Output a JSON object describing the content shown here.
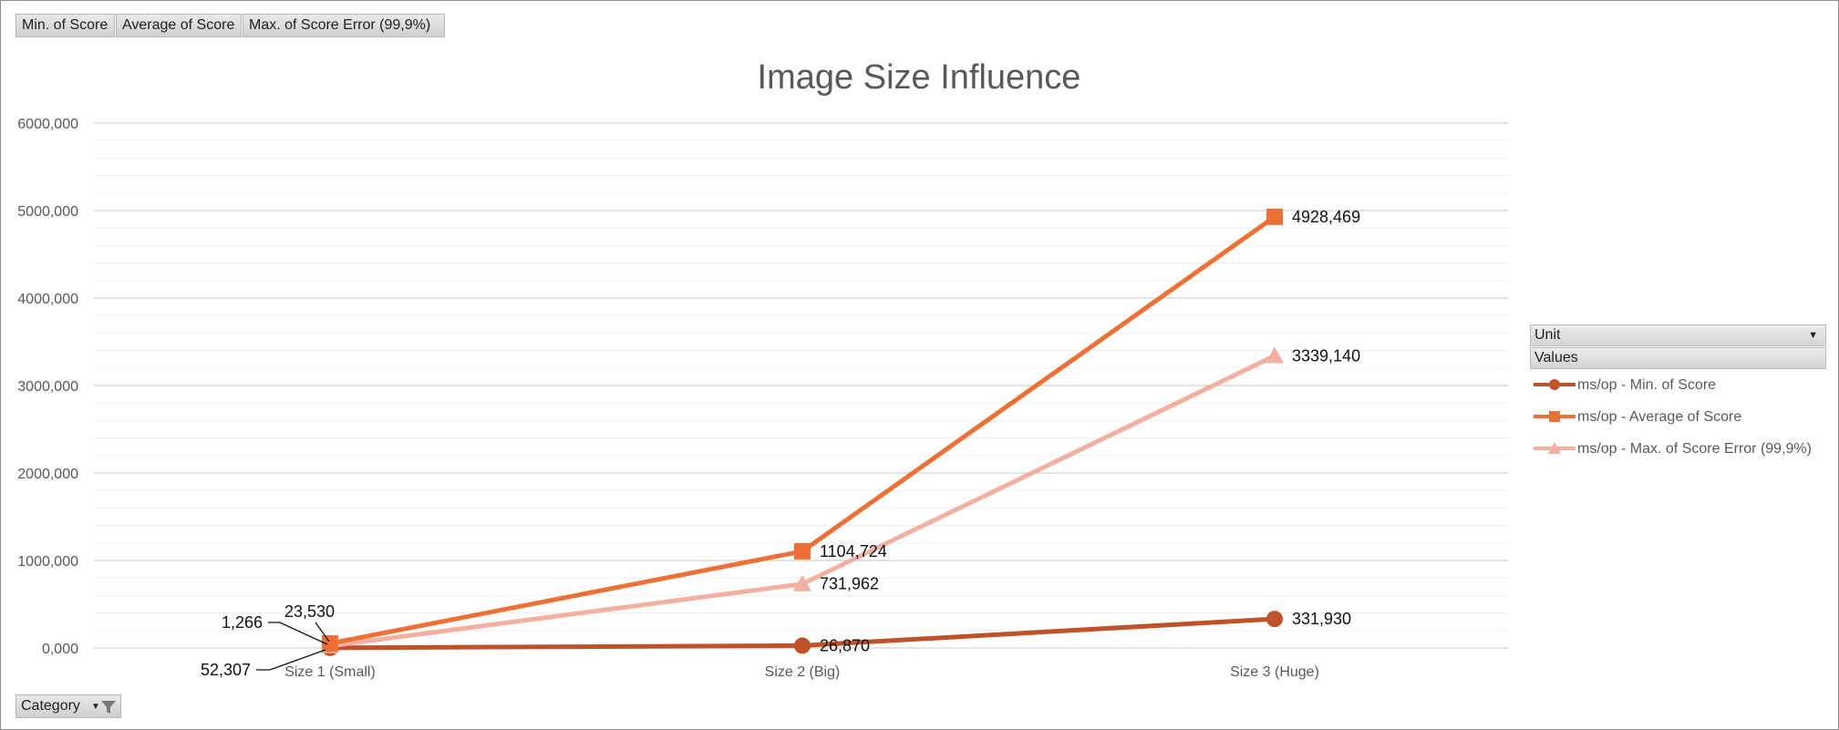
{
  "field_buttons": {
    "min": "Min. of Score",
    "avg": "Average of Score",
    "max": "Max. of Score Error (99,9%)"
  },
  "category_button": {
    "label": "Category",
    "icon": "filter-icon"
  },
  "legend": {
    "unit_label": "Unit",
    "values_label": "Values"
  },
  "chart_data": {
    "type": "line",
    "title": "Image Size Influence",
    "xlabel": "",
    "ylabel": "",
    "categories": [
      "Size 1 (Small)",
      "Size 2 (Big)",
      "Size 3 (Huge)"
    ],
    "ylim": [
      0,
      6000
    ],
    "yticks": [
      0,
      1000,
      2000,
      3000,
      4000,
      5000,
      6000
    ],
    "ytick_labels": [
      "0,000",
      "1000,000",
      "2000,000",
      "3000,000",
      "4000,000",
      "5000,000",
      "6000,000"
    ],
    "grid": true,
    "legend_position": "right",
    "series": [
      {
        "name": "ms/op - Min. of Score",
        "values": [
          1.266,
          26.87,
          331.93
        ],
        "labels": [
          "1,266",
          "26,870",
          "331,930"
        ],
        "color": "#c0522a",
        "marker": "circle"
      },
      {
        "name": "ms/op - Average of Score",
        "values": [
          52.307,
          1104.724,
          4928.469
        ],
        "labels": [
          "52,307",
          "1104,724",
          "4928,469"
        ],
        "color": "#ed7136",
        "marker": "square"
      },
      {
        "name": "ms/op - Max. of Score Error (99,9%)",
        "values": [
          23.53,
          731.962,
          3339.14
        ],
        "labels": [
          "23,530",
          "731,962",
          "3339,140"
        ],
        "color": "#f2b0a0",
        "marker": "triangle"
      }
    ]
  }
}
